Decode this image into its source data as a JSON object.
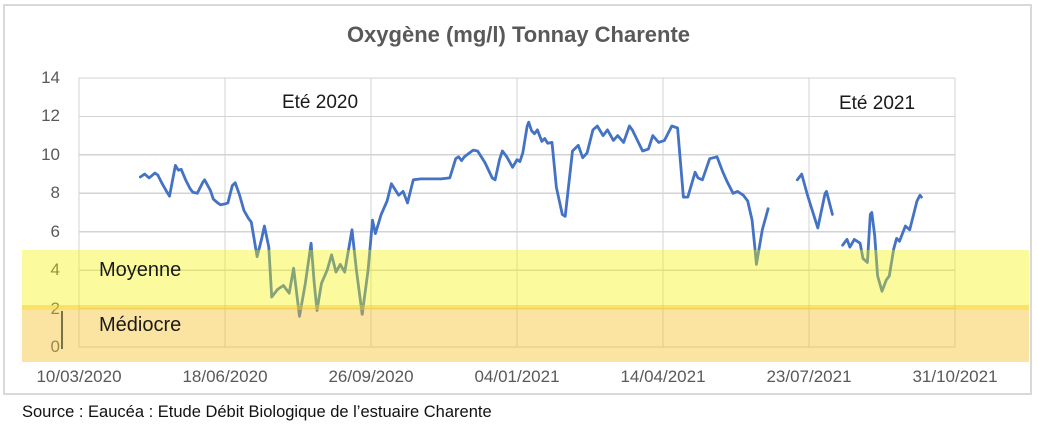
{
  "chart": {
    "title": "Oxygène (mg/l) Tonnay Charente",
    "source_note": "Source : Eaucéa : Etude Débit Biologique de l’estuaire Charente"
  },
  "chart_data": {
    "type": "line",
    "title": "Oxygène (mg/l) Tonnay Charente",
    "xlabel": "",
    "ylabel": "",
    "grid": true,
    "x_axis": {
      "tick_labels": [
        "10/03/2020",
        "18/06/2020",
        "26/09/2020",
        "04/01/2021",
        "14/04/2021",
        "23/07/2021",
        "31/10/2021"
      ],
      "tick_days": [
        0,
        100,
        200,
        300,
        400,
        500,
        600
      ],
      "unit": "days since 10/03/2020"
    },
    "y_axis": {
      "ticks": [
        0,
        2,
        4,
        6,
        8,
        10,
        12,
        14
      ],
      "range": [
        0,
        14
      ]
    },
    "series": [
      {
        "name": "Oxygène (mg/l)",
        "color": "#4472C4",
        "x_unit": "days since 10/03/2020",
        "segments": [
          [
            [
              42,
              8.85
            ],
            [
              45,
              9.0
            ],
            [
              48,
              8.8
            ],
            [
              52,
              9.05
            ],
            [
              54,
              8.95
            ],
            [
              57,
              8.5
            ],
            [
              60,
              8.1
            ],
            [
              62,
              7.85
            ],
            [
              66,
              9.45
            ],
            [
              68,
              9.2
            ],
            [
              70,
              9.25
            ],
            [
              73,
              8.7
            ],
            [
              76,
              8.25
            ],
            [
              78,
              8.05
            ],
            [
              81,
              8.0
            ],
            [
              85,
              8.6
            ],
            [
              86,
              8.7
            ],
            [
              90,
              8.15
            ],
            [
              92,
              7.7
            ],
            [
              95,
              7.5
            ],
            [
              97,
              7.4
            ],
            [
              100,
              7.45
            ],
            [
              102,
              7.5
            ],
            [
              105,
              8.4
            ],
            [
              107,
              8.55
            ],
            [
              110,
              7.9
            ],
            [
              113,
              7.1
            ],
            [
              116,
              6.7
            ],
            [
              118,
              6.5
            ],
            [
              122,
              4.7
            ],
            [
              125,
              5.6
            ],
            [
              127,
              6.3
            ],
            [
              130,
              5.2
            ],
            [
              132,
              2.6
            ],
            [
              136,
              3.0
            ],
            [
              140,
              3.2
            ],
            [
              144,
              2.8
            ],
            [
              147,
              4.1
            ],
            [
              151,
              1.6
            ],
            [
              155,
              3.3
            ],
            [
              159,
              5.4
            ],
            [
              161,
              3.4
            ],
            [
              163,
              1.9
            ],
            [
              166,
              3.3
            ],
            [
              170,
              4.0
            ],
            [
              173,
              4.8
            ],
            [
              176,
              3.9
            ],
            [
              179,
              4.3
            ],
            [
              182,
              3.9
            ],
            [
              187,
              6.1
            ],
            [
              190,
              4.0
            ],
            [
              194,
              1.7
            ],
            [
              198,
              4.0
            ],
            [
              201,
              6.6
            ],
            [
              203,
              5.9
            ],
            [
              207,
              6.9
            ],
            [
              211,
              7.6
            ],
            [
              214,
              8.5
            ],
            [
              219,
              7.9
            ],
            [
              222,
              8.1
            ],
            [
              225,
              7.5
            ],
            [
              229,
              8.7
            ],
            [
              234,
              8.75
            ],
            [
              241,
              8.75
            ],
            [
              248,
              8.75
            ],
            [
              254,
              8.8
            ],
            [
              258,
              9.8
            ],
            [
              260,
              9.9
            ],
            [
              262,
              9.7
            ],
            [
              264,
              9.9
            ],
            [
              270,
              10.25
            ],
            [
              273,
              10.2
            ],
            [
              278,
              9.6
            ],
            [
              283,
              8.8
            ],
            [
              285,
              8.7
            ],
            [
              288,
              9.75
            ],
            [
              290,
              10.2
            ],
            [
              293,
              9.9
            ],
            [
              297,
              9.35
            ],
            [
              300,
              9.75
            ],
            [
              302,
              9.65
            ],
            [
              304,
              10.1
            ],
            [
              307,
              11.5
            ],
            [
              308,
              11.7
            ],
            [
              310,
              11.25
            ],
            [
              312,
              11.1
            ],
            [
              314,
              11.3
            ],
            [
              317,
              10.7
            ],
            [
              319,
              10.85
            ],
            [
              321,
              10.6
            ],
            [
              324,
              10.65
            ],
            [
              327,
              8.3
            ],
            [
              331,
              6.9
            ],
            [
              333,
              6.8
            ],
            [
              338,
              10.2
            ],
            [
              342,
              10.5
            ],
            [
              345,
              9.85
            ],
            [
              348,
              10.1
            ],
            [
              352,
              11.3
            ],
            [
              355,
              11.5
            ],
            [
              359,
              11.0
            ],
            [
              362,
              11.3
            ],
            [
              366,
              10.75
            ],
            [
              369,
              11.0
            ],
            [
              373,
              10.65
            ],
            [
              377,
              11.5
            ],
            [
              379,
              11.3
            ],
            [
              386,
              10.2
            ],
            [
              390,
              10.3
            ],
            [
              393,
              11.0
            ],
            [
              397,
              10.65
            ],
            [
              401,
              10.75
            ],
            [
              406,
              11.5
            ],
            [
              410,
              11.4
            ],
            [
              414,
              7.8
            ],
            [
              417,
              7.8
            ],
            [
              422,
              9.1
            ],
            [
              424,
              8.8
            ],
            [
              427,
              8.7
            ],
            [
              432,
              9.8
            ],
            [
              437,
              9.9
            ],
            [
              441,
              9.1
            ],
            [
              444,
              8.6
            ],
            [
              448,
              8.0
            ],
            [
              451,
              8.1
            ],
            [
              455,
              7.9
            ],
            [
              458,
              7.6
            ],
            [
              461,
              6.6
            ],
            [
              463,
              5.1
            ],
            [
              464,
              4.3
            ],
            [
              468,
              6.1
            ],
            [
              472,
              7.2
            ]
          ],
          [
            [
              492,
              8.7
            ],
            [
              495,
              9.0
            ],
            [
              499,
              7.9
            ],
            [
              501,
              7.4
            ],
            [
              506,
              6.2
            ],
            [
              511,
              8.0
            ],
            [
              512,
              8.1
            ],
            [
              516,
              6.9
            ]
          ],
          [
            [
              523,
              5.3
            ],
            [
              526,
              5.6
            ],
            [
              528,
              5.2
            ],
            [
              531,
              5.6
            ],
            [
              535,
              5.4
            ],
            [
              537,
              4.6
            ],
            [
              540,
              4.4
            ],
            [
              542,
              6.9
            ],
            [
              543,
              7.0
            ],
            [
              545,
              5.8
            ],
            [
              547,
              3.7
            ],
            [
              550,
              2.9
            ],
            [
              553,
              3.5
            ],
            [
              555,
              3.7
            ],
            [
              558,
              5.1
            ],
            [
              560,
              5.65
            ],
            [
              562,
              5.5
            ],
            [
              566,
              6.3
            ],
            [
              569,
              6.1
            ],
            [
              574,
              7.6
            ],
            [
              576,
              7.9
            ],
            [
              577,
              7.8
            ]
          ]
        ]
      }
    ],
    "bands": [
      {
        "label": "Moyenne",
        "value_from": 5.05,
        "value_to": 1.95,
        "color": "rgba(245,245,0,0.38)"
      },
      {
        "label": "Médiocre",
        "value_from": 2.2,
        "value_to": -0.8,
        "color": "rgba(246,191,40,0.44)"
      }
    ],
    "annotations": [
      {
        "text": "Eté 2020",
        "day_center": 165,
        "value_center": 12.8
      },
      {
        "text": "Eté 2021",
        "day_center": 546,
        "value_center": 12.7
      }
    ],
    "legend": "none"
  }
}
